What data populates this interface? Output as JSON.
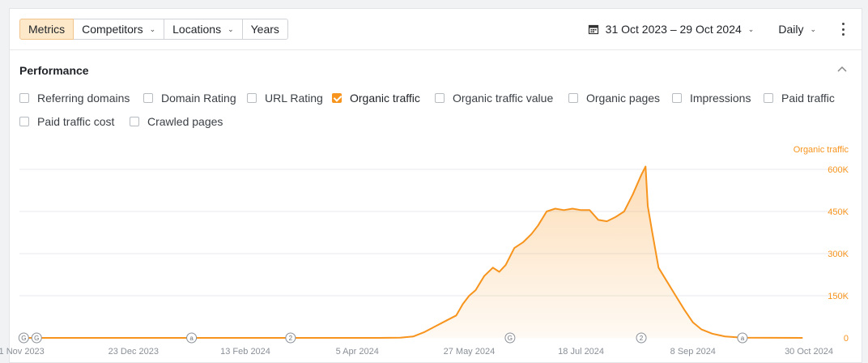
{
  "toolbar": {
    "tabs": [
      {
        "label": "Metrics",
        "active": true
      },
      {
        "label": "Competitors",
        "dropdown": true
      },
      {
        "label": "Locations",
        "dropdown": true
      },
      {
        "label": "Years"
      }
    ],
    "date_range": "31 Oct 2023 – 29 Oct 2024",
    "granularity": "Daily"
  },
  "performance": {
    "title": "Performance",
    "metrics": [
      {
        "label": "Referring domains",
        "checked": false
      },
      {
        "label": "Domain Rating",
        "checked": false
      },
      {
        "label": "URL Rating",
        "checked": false
      },
      {
        "label": "Organic traffic",
        "checked": true
      },
      {
        "label": "Organic traffic value",
        "checked": false
      },
      {
        "label": "Organic pages",
        "checked": false
      },
      {
        "label": "Impressions",
        "checked": false
      },
      {
        "label": "Paid traffic",
        "checked": false
      },
      {
        "label": "Paid traffic cost",
        "checked": false
      },
      {
        "label": "Crawled pages",
        "checked": false
      }
    ]
  },
  "colors": {
    "accent": "#f7941d",
    "active_tab_bg": "#fde8c9",
    "grid": "#e8eaed",
    "marker": "#8a9098"
  },
  "chart_data": {
    "type": "area",
    "series": [
      {
        "name": "Organic traffic",
        "points": [
          [
            "2023-10-31",
            0
          ],
          [
            "2024-04-15",
            0
          ],
          [
            "2024-04-25",
            1000
          ],
          [
            "2024-05-01",
            5000
          ],
          [
            "2024-05-06",
            20000
          ],
          [
            "2024-05-11",
            40000
          ],
          [
            "2024-05-16",
            60000
          ],
          [
            "2024-05-21",
            80000
          ],
          [
            "2024-05-24",
            120000
          ],
          [
            "2024-05-27",
            150000
          ],
          [
            "2024-05-30",
            170000
          ],
          [
            "2024-06-03",
            220000
          ],
          [
            "2024-06-07",
            250000
          ],
          [
            "2024-06-10",
            235000
          ],
          [
            "2024-06-13",
            260000
          ],
          [
            "2024-06-17",
            320000
          ],
          [
            "2024-06-21",
            340000
          ],
          [
            "2024-06-25",
            370000
          ],
          [
            "2024-06-28",
            400000
          ],
          [
            "2024-07-02",
            450000
          ],
          [
            "2024-07-06",
            460000
          ],
          [
            "2024-07-10",
            455000
          ],
          [
            "2024-07-14",
            460000
          ],
          [
            "2024-07-18",
            455000
          ],
          [
            "2024-07-22",
            455000
          ],
          [
            "2024-07-26",
            420000
          ],
          [
            "2024-07-30",
            415000
          ],
          [
            "2024-08-03",
            430000
          ],
          [
            "2024-08-07",
            450000
          ],
          [
            "2024-08-11",
            510000
          ],
          [
            "2024-08-15",
            580000
          ],
          [
            "2024-08-17",
            610000
          ],
          [
            "2024-08-18",
            470000
          ],
          [
            "2024-08-20",
            380000
          ],
          [
            "2024-08-23",
            250000
          ],
          [
            "2024-08-27",
            200000
          ],
          [
            "2024-08-31",
            150000
          ],
          [
            "2024-09-04",
            100000
          ],
          [
            "2024-09-08",
            55000
          ],
          [
            "2024-09-12",
            30000
          ],
          [
            "2024-09-17",
            15000
          ],
          [
            "2024-09-23",
            5000
          ],
          [
            "2024-10-01",
            1000
          ],
          [
            "2024-10-29",
            0
          ]
        ]
      }
    ],
    "y_axis": {
      "label": "Organic traffic",
      "ticks": [
        "0",
        "150K",
        "300K",
        "450K",
        "600K"
      ],
      "tick_values": [
        0,
        150000,
        300000,
        450000,
        600000
      ],
      "range": [
        0,
        600000
      ]
    },
    "x_axis": {
      "range": [
        "2023-10-31",
        "2024-10-30"
      ],
      "ticks": [
        {
          "label": "1 Nov 2023",
          "date": "2023-11-01"
        },
        {
          "label": "23 Dec 2023",
          "date": "2023-12-23"
        },
        {
          "label": "13 Feb 2024",
          "date": "2024-02-13"
        },
        {
          "label": "5 Apr 2024",
          "date": "2024-04-05"
        },
        {
          "label": "27 May 2024",
          "date": "2024-05-27"
        },
        {
          "label": "18 Jul 2024",
          "date": "2024-07-18"
        },
        {
          "label": "8 Sep 2024",
          "date": "2024-09-08"
        },
        {
          "label": "30 Oct 2024",
          "date": "2024-10-30"
        }
      ]
    },
    "grid": true,
    "annotations": [
      {
        "label": "G",
        "date": "2023-11-02"
      },
      {
        "label": "G",
        "date": "2023-11-08"
      },
      {
        "label": "a",
        "date": "2024-01-19"
      },
      {
        "label": "2",
        "date": "2024-03-05"
      },
      {
        "label": "G",
        "date": "2024-06-15"
      },
      {
        "label": "2",
        "date": "2024-08-15"
      },
      {
        "label": "a",
        "date": "2024-10-01"
      }
    ]
  }
}
